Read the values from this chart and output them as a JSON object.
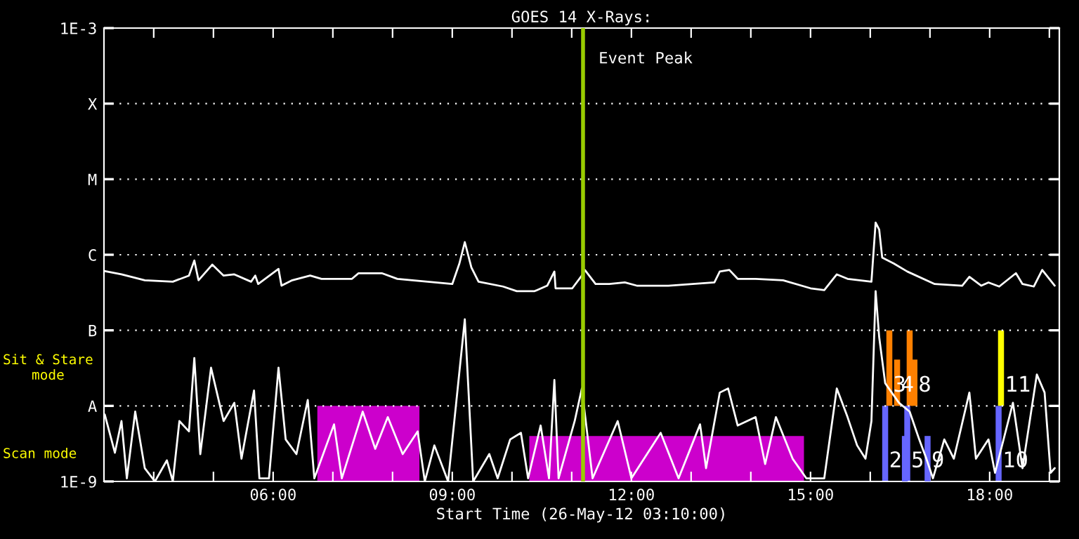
{
  "chart_data": {
    "type": "line",
    "title": "GOES 14 X-Rays:",
    "xlabel": "Start Time (26-May-12 03:10:00)",
    "log": "y",
    "grid": "y",
    "marker": "none",
    "xlim": [
      3.1667,
      19.1667
    ],
    "ylim": [
      1e-09,
      0.001
    ],
    "xticks": [
      {
        "value": 4,
        "label": null
      },
      {
        "value": 5,
        "label": null
      },
      {
        "value": 6,
        "label": "06:00"
      },
      {
        "value": 7,
        "label": null
      },
      {
        "value": 8,
        "label": null
      },
      {
        "value": 9,
        "label": "09:00"
      },
      {
        "value": 10,
        "label": null
      },
      {
        "value": 11,
        "label": null
      },
      {
        "value": 12,
        "label": "12:00"
      },
      {
        "value": 13,
        "label": null
      },
      {
        "value": 14,
        "label": null
      },
      {
        "value": 15,
        "label": "15:00"
      },
      {
        "value": 16,
        "label": null
      },
      {
        "value": 17,
        "label": null
      },
      {
        "value": 18,
        "label": "18:00"
      },
      {
        "value": 19,
        "label": null
      }
    ],
    "yticks": [
      {
        "value": 1e-09,
        "label": "1E-9"
      },
      {
        "value": 1e-08,
        "label": "A"
      },
      {
        "value": 1e-07,
        "label": "B"
      },
      {
        "value": 1e-06,
        "label": "C"
      },
      {
        "value": 1e-05,
        "label": "M"
      },
      {
        "value": 0.0001,
        "label": "X"
      },
      {
        "value": 0.001,
        "label": "1E-3"
      }
    ],
    "ref_lines": [
      {
        "axis": "x",
        "value": 11.19,
        "label": "Event Peak",
        "color": "#99cc00"
      }
    ],
    "series": [
      {
        "type": "area",
        "color": "#cc00cc",
        "x": [
          6.74,
          8.45
        ],
        "values": [
          1e-08,
          1e-08
        ]
      },
      {
        "type": "area",
        "color": "#cc00cc",
        "x": [
          10.29,
          14.89
        ],
        "values": [
          4e-09,
          4e-09
        ]
      },
      {
        "color": "#ffffff",
        "x": [
          3.17,
          3.46,
          3.85,
          4.32,
          4.59,
          4.68,
          4.75,
          4.98,
          5.17,
          5.35,
          5.63,
          5.7,
          5.75,
          6.09,
          6.14,
          6.32,
          6.62,
          6.81,
          7.32,
          7.43,
          7.82,
          8.08,
          9.0,
          9.12,
          9.21,
          9.32,
          9.44,
          9.85,
          10.08,
          10.38,
          10.59,
          10.71,
          10.73,
          11.01,
          11.17,
          11.22,
          11.4,
          11.63,
          11.89,
          12.09,
          12.62,
          13.39,
          13.48,
          13.64,
          13.78,
          14.08,
          14.54,
          15.0,
          15.23,
          15.44,
          15.62,
          16.02,
          16.09,
          16.15,
          16.2,
          16.39,
          16.62,
          17.08,
          17.54,
          17.66,
          17.86,
          17.98,
          18.16,
          18.44,
          18.55,
          18.74,
          18.88,
          19.09
        ],
        "values": [
          6.1e-07,
          5.5e-07,
          4.6e-07,
          4.4e-07,
          5.3e-07,
          8.4e-07,
          4.6e-07,
          7.4e-07,
          5.3e-07,
          5.5e-07,
          4.4e-07,
          5.3e-07,
          4.1e-07,
          6.5e-07,
          3.9e-07,
          4.6e-07,
          5.3e-07,
          4.8e-07,
          4.8e-07,
          5.7e-07,
          5.7e-07,
          4.8e-07,
          4.1e-07,
          7.7e-07,
          1.47e-06,
          6.8e-07,
          4.4e-07,
          3.8e-07,
          3.3e-07,
          3.3e-07,
          3.9e-07,
          6e-07,
          3.6e-07,
          3.6e-07,
          5.3e-07,
          6.3e-07,
          4.1e-07,
          4.1e-07,
          4.3e-07,
          3.9e-07,
          3.9e-07,
          4.3e-07,
          6e-07,
          6.3e-07,
          4.8e-07,
          4.8e-07,
          4.6e-07,
          3.6e-07,
          3.4e-07,
          5.5e-07,
          4.8e-07,
          4.4e-07,
          2.67e-06,
          2.15e-06,
          9.2e-07,
          7.7e-07,
          6e-07,
          4.1e-07,
          3.9e-07,
          5.1e-07,
          3.9e-07,
          4.3e-07,
          3.8e-07,
          5.7e-07,
          4.1e-07,
          3.8e-07,
          6.3e-07,
          3.9e-07
        ]
      },
      {
        "color": "#ffffff",
        "x": [
          3.18,
          3.35,
          3.46,
          3.55,
          3.69,
          3.85,
          4.02,
          4.22,
          4.32,
          4.43,
          4.59,
          4.68,
          4.78,
          4.96,
          5.17,
          5.35,
          5.47,
          5.68,
          5.77,
          5.93,
          6.09,
          6.21,
          6.39,
          6.58,
          6.69,
          7.02,
          7.15,
          7.5,
          7.71,
          7.92,
          8.17,
          8.42,
          8.54,
          8.7,
          8.93,
          9.21,
          9.35,
          9.62,
          9.76,
          9.97,
          10.15,
          10.27,
          10.48,
          10.62,
          10.71,
          10.78,
          11.05,
          11.17,
          11.35,
          11.77,
          12.0,
          12.49,
          12.79,
          13.15,
          13.25,
          13.48,
          13.62,
          13.78,
          14.08,
          14.24,
          14.42,
          14.7,
          14.93,
          15.23,
          15.44,
          15.62,
          15.78,
          15.92,
          16.02,
          16.09,
          16.15,
          16.25,
          16.48,
          16.66,
          16.82,
          16.94,
          17.05,
          17.24,
          17.4,
          17.66,
          17.77,
          17.98,
          18.09,
          18.39,
          18.55,
          18.79,
          18.92,
          19.02,
          19.09
        ],
        "values": [
          7.7e-09,
          2.4e-09,
          6.3e-09,
          1.1e-09,
          8.4e-09,
          1.5e-09,
          1e-09,
          1.9e-09,
          1e-09,
          6.3e-09,
          4.6e-09,
          4.3e-08,
          2.3e-09,
          3.2e-08,
          6.3e-09,
          1.1e-08,
          2e-09,
          1.6e-08,
          1.1e-09,
          1.1e-09,
          3.2e-08,
          3.6e-09,
          2.3e-09,
          1.2e-08,
          1.1e-09,
          5.7e-09,
          1.1e-09,
          8.4e-09,
          2.7e-09,
          7.1e-09,
          2.3e-09,
          4.6e-09,
          1e-09,
          3e-09,
          1e-09,
          1.4e-07,
          1e-09,
          2.3e-09,
          1.1e-09,
          3.6e-09,
          4.4e-09,
          1.1e-09,
          5.5e-09,
          1.1e-09,
          2.2e-08,
          1.1e-09,
          6.3e-09,
          1.7e-08,
          1.1e-09,
          6.3e-09,
          1.1e-09,
          4.4e-09,
          1.1e-09,
          5.7e-09,
          1.5e-09,
          1.5e-08,
          1.7e-08,
          5.5e-09,
          7.1e-09,
          1.7e-09,
          7.1e-09,
          2e-09,
          1.1e-09,
          1.1e-09,
          1.7e-08,
          7.1e-09,
          3e-09,
          2e-09,
          6.3e-09,
          3.3e-07,
          8.1e-08,
          2e-08,
          1.1e-08,
          8.4e-09,
          3.6e-09,
          2e-09,
          1.1e-09,
          3.6e-09,
          2e-09,
          1.5e-08,
          2e-09,
          3.6e-09,
          1.3e-09,
          1.1e-08,
          1.5e-09,
          2.6e-08,
          1.5e-08,
          1.3e-09,
          1.5e-09
        ]
      },
      {
        "type": "bar",
        "color": "#ff8000",
        "x": [
          16.32,
          16.45,
          16.66,
          16.74
        ],
        "base": [
          1e-08,
          1e-08,
          1e-08,
          1e-08
        ],
        "values": [
          9e-08,
          3.1e-08,
          9e-08,
          3.1e-08
        ]
      },
      {
        "type": "bar",
        "color": "#6666ff",
        "x": [
          16.25,
          16.58,
          16.62,
          16.96,
          18.15
        ],
        "base": [
          1e-09,
          1e-09,
          1e-09,
          1e-09,
          1e-09
        ],
        "values": [
          9e-09,
          3e-09,
          9e-09,
          3e-09,
          9e-09
        ]
      },
      {
        "type": "bar",
        "color": "#ffff00",
        "x": [
          18.19
        ],
        "base": [
          1e-08
        ],
        "values": [
          9e-08
        ]
      }
    ],
    "annotations": [
      "Sit & Stare\nmode",
      "Scan mode",
      {
        "text": "3",
        "x": 16.32,
        "y": 1e-08
      },
      {
        "text": "4",
        "x": 16.45,
        "y": 1e-08
      },
      {
        "text": "8",
        "x": 16.74,
        "y": 1e-08
      },
      {
        "text": "11",
        "x": 18.19,
        "y": 1e-08
      },
      {
        "text": "2",
        "x": 16.25,
        "y": 1e-09
      },
      {
        "text": "5",
        "x": 16.62,
        "y": 1e-09
      },
      {
        "text": "9",
        "x": 16.96,
        "y": 1e-09
      },
      {
        "text": "10",
        "x": 18.15,
        "y": 1e-09
      }
    ]
  }
}
